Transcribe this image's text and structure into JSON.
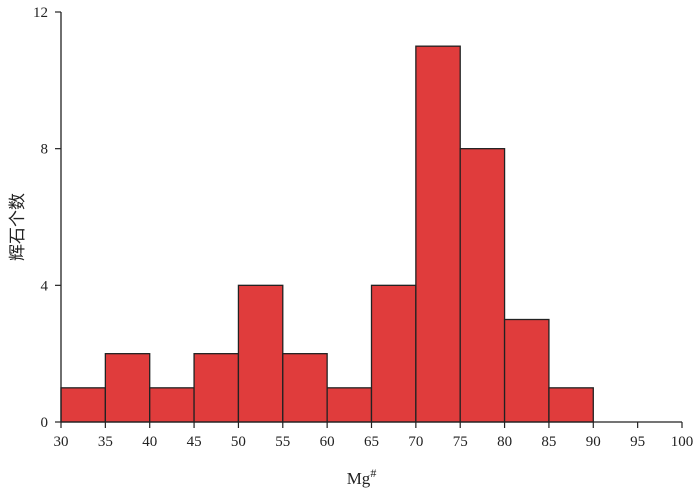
{
  "chart_data": {
    "type": "bar",
    "subtype": "histogram",
    "bins": [
      {
        "start": 30,
        "end": 35,
        "count": 1
      },
      {
        "start": 35,
        "end": 40,
        "count": 2
      },
      {
        "start": 40,
        "end": 45,
        "count": 1
      },
      {
        "start": 45,
        "end": 50,
        "count": 2
      },
      {
        "start": 50,
        "end": 55,
        "count": 4
      },
      {
        "start": 55,
        "end": 60,
        "count": 2
      },
      {
        "start": 60,
        "end": 65,
        "count": 1
      },
      {
        "start": 65,
        "end": 70,
        "count": 4
      },
      {
        "start": 70,
        "end": 75,
        "count": 11
      },
      {
        "start": 75,
        "end": 80,
        "count": 8
      },
      {
        "start": 80,
        "end": 85,
        "count": 3
      },
      {
        "start": 85,
        "end": 90,
        "count": 1
      }
    ],
    "xlabel": "Mg",
    "xlabel_sup": "#",
    "ylabel": "辉石个数",
    "xlim": [
      30,
      100
    ],
    "ylim": [
      0,
      12
    ],
    "xticks": [
      30,
      35,
      40,
      45,
      50,
      55,
      60,
      65,
      70,
      75,
      80,
      85,
      90,
      95,
      100
    ],
    "yticks": [
      0,
      4,
      8,
      12
    ],
    "bar_color": "#e03c3c",
    "edge_color": "#222222",
    "grid": false
  }
}
